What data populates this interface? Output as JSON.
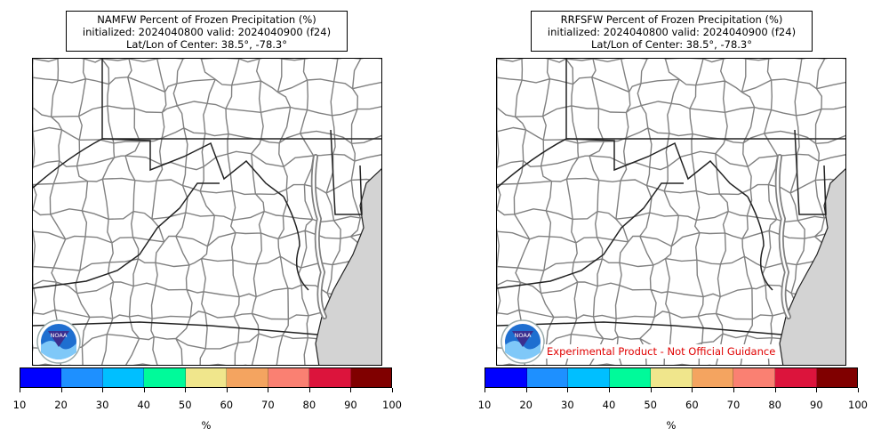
{
  "panels": [
    {
      "id": "left",
      "title_line1": "NAMFW Percent of Frozen Precipitation (%)",
      "title_line2": "initialized: 2024040800 valid: 2024040900 (f24)",
      "title_line3": "Lat/Lon of Center: 38.5°, -78.3°",
      "logo_text": "NOAA",
      "colorbar_unit": "%"
    },
    {
      "id": "right",
      "title_line1": "RRFSFW Percent of Frozen Precipitation (%)",
      "title_line2": "initialized: 2024040800 valid: 2024040900 (f24)",
      "title_line3": "Lat/Lon of Center: 38.5°, -78.3°",
      "logo_text": "NOAA",
      "disclaimer": "Experimental Product - Not Official Guidance",
      "colorbar_unit": "%"
    }
  ],
  "colorbar": {
    "ticks": [
      "10",
      "20",
      "30",
      "40",
      "50",
      "60",
      "70",
      "80",
      "90",
      "100"
    ],
    "colors": [
      "#0000ff",
      "#1e90ff",
      "#00bfff",
      "#00fa9a",
      "#f0e68c",
      "#f4a460",
      "#fa8072",
      "#dc143c",
      "#800000"
    ]
  },
  "map_colors": {
    "ocean": "#d3d3d3",
    "county_line": "#808080",
    "state_line": "#222222"
  }
}
